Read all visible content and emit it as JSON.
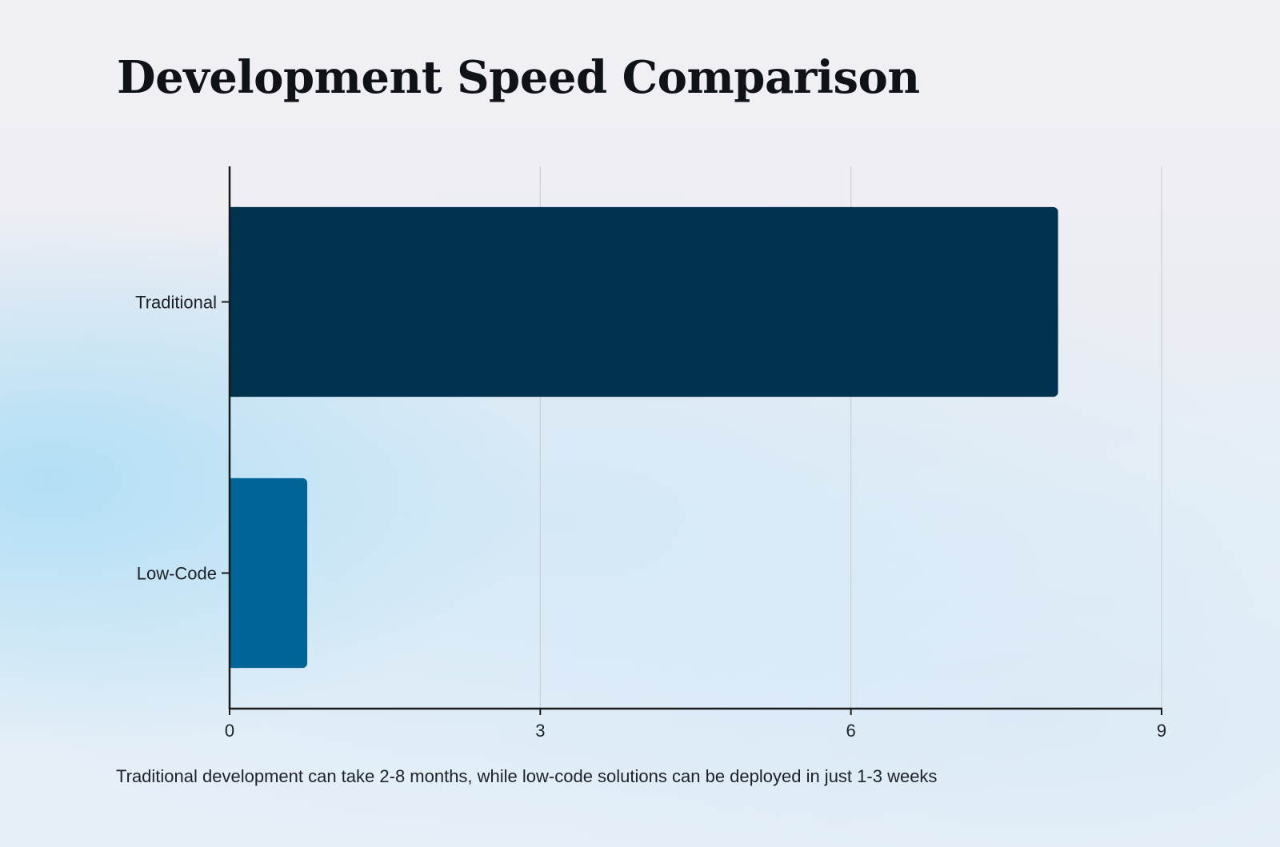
{
  "chart_data": {
    "type": "bar",
    "orientation": "horizontal",
    "title": "Development Speed Comparison",
    "categories": [
      "Traditional",
      "Low-Code"
    ],
    "values": [
      8,
      0.75
    ],
    "colors": [
      "#003350",
      "#006496"
    ],
    "xlim": [
      0,
      9
    ],
    "xticks": [
      "0",
      "3",
      "6",
      "9"
    ],
    "xlabel": "",
    "ylabel": "",
    "grid": "vertical",
    "caption": "Traditional development can take 2-8 months, while low-code solutions can be deployed in just 1-3 weeks"
  }
}
